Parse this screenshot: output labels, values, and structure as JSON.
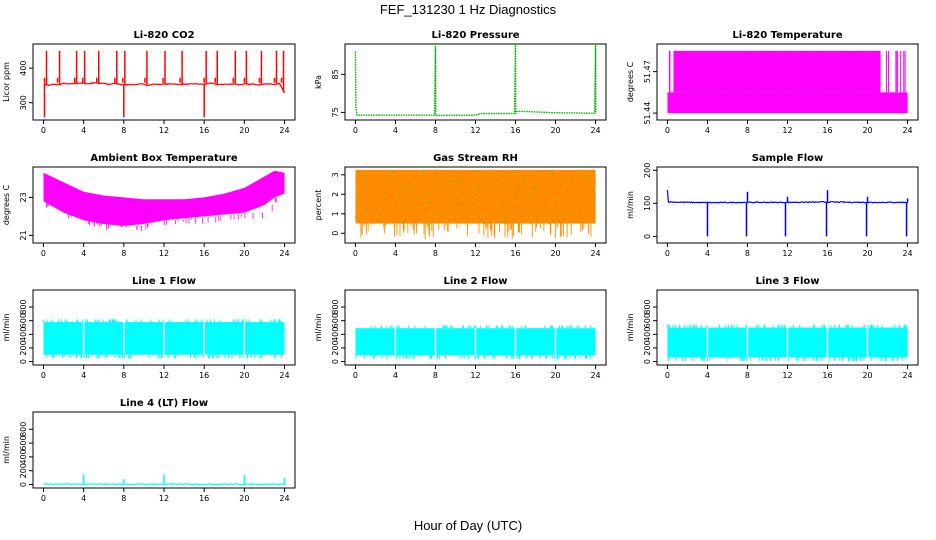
{
  "figure": {
    "title": "FEF_131230  1 Hz Diagnostics",
    "xlabel": "Hour of Day (UTC)"
  },
  "chart_data": [
    {
      "type": "line",
      "title": "Li-820 CO2",
      "xlabel": "",
      "ylabel": "Licor ppm",
      "xlim": [
        0,
        24
      ],
      "ylim": [
        250,
        470
      ],
      "xticks": [
        0,
        4,
        8,
        12,
        16,
        20,
        24
      ],
      "yticks": [
        300,
        400
      ],
      "color": "#ff0000",
      "style": "line",
      "series": [
        {
          "x": [
            0,
            0.5,
            1,
            1.5,
            2,
            2.5,
            3,
            3.5,
            4,
            4.5,
            5,
            5.5,
            6,
            6.5,
            7,
            7.5,
            8,
            8.5,
            9,
            9.5,
            10,
            10.5,
            11,
            11.5,
            12,
            12.5,
            13,
            13.5,
            14,
            14.5,
            15,
            15.5,
            16,
            16.5,
            17,
            17.5,
            18,
            18.5,
            19,
            19.5,
            20,
            20.5,
            21,
            21.5,
            22,
            22.5,
            23,
            23.5,
            24
          ],
          "y": [
            355,
            350,
            353,
            352,
            356,
            354,
            355,
            357,
            356,
            355,
            358,
            356,
            357,
            352,
            356,
            354,
            352,
            353,
            352,
            354,
            353,
            351,
            354,
            353,
            354,
            354,
            355,
            352,
            354,
            353,
            355,
            354,
            353,
            356,
            355,
            352,
            354,
            353,
            355,
            352,
            354,
            353,
            354,
            352,
            355,
            354,
            353,
            355,
            330
          ]
        }
      ],
      "spikes": [
        {
          "x": 0.1,
          "y": 258
        },
        {
          "x": 0.3,
          "y": 450
        },
        {
          "x": 1.6,
          "y": 450
        },
        {
          "x": 3.3,
          "y": 450
        },
        {
          "x": 4.1,
          "y": 450
        },
        {
          "x": 5.5,
          "y": 450
        },
        {
          "x": 7.3,
          "y": 450
        },
        {
          "x": 8.0,
          "y": 258
        },
        {
          "x": 8.1,
          "y": 450
        },
        {
          "x": 10.3,
          "y": 450
        },
        {
          "x": 12.1,
          "y": 450
        },
        {
          "x": 13.8,
          "y": 450
        },
        {
          "x": 16.0,
          "y": 258
        },
        {
          "x": 16.2,
          "y": 450
        },
        {
          "x": 17.3,
          "y": 450
        },
        {
          "x": 19.1,
          "y": 450
        },
        {
          "x": 20.2,
          "y": 450
        },
        {
          "x": 21.7,
          "y": 450
        },
        {
          "x": 23.2,
          "y": 450
        },
        {
          "x": 23.9,
          "y": 450
        }
      ]
    },
    {
      "type": "line",
      "title": "Li-820 Pressure",
      "xlabel": "",
      "ylabel": "kPa",
      "xlim": [
        0,
        24
      ],
      "ylim": [
        73,
        93
      ],
      "xticks": [
        0,
        4,
        8,
        12,
        16,
        20,
        24
      ],
      "yticks": [
        75,
        85
      ],
      "color": "#00aa00",
      "style": "dotted",
      "series": [
        {
          "x": [
            0,
            0.05,
            0.15,
            0.2,
            4,
            7.9,
            8.0,
            8.02,
            8.1,
            12,
            12.5,
            15.9,
            16.0,
            16.02,
            16.1,
            16.5,
            20,
            23.9,
            24.0,
            24.02
          ],
          "y": [
            91,
            76.5,
            74.3,
            74.3,
            74.3,
            74.3,
            92.5,
            74.3,
            74.2,
            74.3,
            74.7,
            74.7,
            93,
            74.7,
            75.2,
            75.3,
            74.9,
            74.8,
            93,
            74.8
          ]
        }
      ]
    },
    {
      "type": "band",
      "title": "Li-820 Temperature",
      "xlabel": "",
      "ylabel": "degrees C",
      "xlim": [
        0,
        24
      ],
      "ylim": [
        51.435,
        51.49
      ],
      "xticks": [
        0,
        4,
        8,
        12,
        16,
        20,
        24
      ],
      "yticks": [
        51.44,
        51.47
      ],
      "color": "#ff00ff",
      "band": {
        "low": 51.44,
        "mid": 51.455,
        "high": 51.485,
        "top_flicker_fraction": 0.8
      }
    },
    {
      "type": "band",
      "title": "Ambient Box Temperature",
      "xlabel": "",
      "ylabel": "degrees C",
      "xlim": [
        0,
        24
      ],
      "ylim": [
        20.6,
        24.6
      ],
      "xticks": [
        0,
        4,
        8,
        12,
        16,
        20,
        24
      ],
      "yticks": [
        21,
        23
      ],
      "color": "#ff00ff",
      "series": [
        {
          "x": [
            0,
            2,
            4,
            6,
            8,
            10,
            12,
            14,
            16,
            18,
            20,
            22,
            23,
            24
          ],
          "y_low": [
            22.8,
            22.2,
            21.8,
            21.6,
            21.5,
            21.6,
            21.8,
            21.9,
            22.0,
            22.1,
            22.2,
            22.6,
            23.0,
            23.2
          ],
          "y_high": [
            24.3,
            23.8,
            23.3,
            23.1,
            23.0,
            22.9,
            22.9,
            22.9,
            23.0,
            23.2,
            23.5,
            24.1,
            24.4,
            24.3
          ]
        }
      ]
    },
    {
      "type": "scatter",
      "title": "Gas Stream RH",
      "xlabel": "",
      "ylabel": "percent",
      "xlim": [
        0,
        24
      ],
      "ylim": [
        -0.5,
        3.4
      ],
      "xticks": [
        0,
        4,
        8,
        12,
        16,
        20,
        24
      ],
      "yticks": [
        0,
        1,
        2,
        3
      ],
      "color": "#ff8c00",
      "accent_color": "#999900",
      "band": {
        "low": 0.5,
        "high": 3.25,
        "dip_to": -0.3
      }
    },
    {
      "type": "line",
      "title": "Sample Flow",
      "xlabel": "",
      "ylabel": "ml/min",
      "xlim": [
        0,
        24
      ],
      "ylim": [
        -20,
        210
      ],
      "xticks": [
        0,
        4,
        8,
        12,
        16,
        20,
        24
      ],
      "yticks": [
        0,
        100,
        200
      ],
      "color": "#0000ff",
      "series": [
        {
          "x": [
            0,
            0.1,
            0.2,
            4,
            8,
            12,
            16,
            20,
            24
          ],
          "y": [
            140,
            105,
            104,
            102,
            103,
            103,
            104,
            103,
            103
          ]
        }
      ],
      "spikes": [
        {
          "x": 4.0,
          "y": 0
        },
        {
          "x": 7.9,
          "y": 0
        },
        {
          "x": 8.0,
          "y": 135
        },
        {
          "x": 11.8,
          "y": 0
        },
        {
          "x": 12.0,
          "y": 120
        },
        {
          "x": 15.9,
          "y": 0
        },
        {
          "x": 16.0,
          "y": 140
        },
        {
          "x": 19.9,
          "y": 0
        },
        {
          "x": 20.0,
          "y": 120
        },
        {
          "x": 23.9,
          "y": 0
        },
        {
          "x": 24.0,
          "y": 115
        }
      ]
    },
    {
      "type": "band",
      "title": "Line 1 Flow",
      "xlabel": "",
      "ylabel": "ml/min",
      "xlim": [
        0,
        24
      ],
      "ylim": [
        -50,
        1050
      ],
      "xticks": [
        0,
        4,
        8,
        12,
        16,
        20,
        24
      ],
      "yticks": [
        0,
        200,
        400,
        600,
        800
      ],
      "color": "#00ffff",
      "band": {
        "low": 100,
        "high": 580,
        "gaps": [
          4,
          8,
          12,
          16,
          20
        ]
      }
    },
    {
      "type": "band",
      "title": "Line 2 Flow",
      "xlabel": "",
      "ylabel": "ml/min",
      "xlim": [
        0,
        24
      ],
      "ylim": [
        -50,
        1050
      ],
      "xticks": [
        0,
        4,
        8,
        12,
        16,
        20,
        24
      ],
      "yticks": [
        0,
        200,
        400,
        600,
        800
      ],
      "color": "#00ffff",
      "band": {
        "low": 90,
        "high": 490,
        "gaps": [
          4,
          8,
          12,
          16,
          20
        ]
      }
    },
    {
      "type": "band",
      "title": "Line 3 Flow",
      "xlabel": "",
      "ylabel": "ml/min",
      "xlim": [
        0,
        24
      ],
      "ylim": [
        -50,
        1050
      ],
      "xticks": [
        0,
        4,
        8,
        12,
        16,
        20,
        24
      ],
      "yticks": [
        0,
        200,
        400,
        600,
        800
      ],
      "color": "#00ffff",
      "band": {
        "low": 60,
        "high": 500,
        "gaps": [
          4,
          8,
          12,
          16,
          20
        ]
      }
    },
    {
      "type": "line",
      "title": "Line 4 (LT) Flow",
      "xlabel": "",
      "ylabel": "ml/min",
      "xlim": [
        0,
        24
      ],
      "ylim": [
        -50,
        1050
      ],
      "xticks": [
        0,
        4,
        8,
        12,
        16,
        20,
        24
      ],
      "yticks": [
        0,
        200,
        400,
        600,
        800
      ],
      "color": "#00ffff",
      "series": [
        {
          "x": [
            0,
            24
          ],
          "y": [
            5,
            5
          ]
        }
      ],
      "spikes": [
        {
          "x": 4.0,
          "y": 150
        },
        {
          "x": 8.0,
          "y": 80
        },
        {
          "x": 12.0,
          "y": 150
        },
        {
          "x": 20.0,
          "y": 140
        },
        {
          "x": 24.0,
          "y": 100
        }
      ]
    }
  ]
}
